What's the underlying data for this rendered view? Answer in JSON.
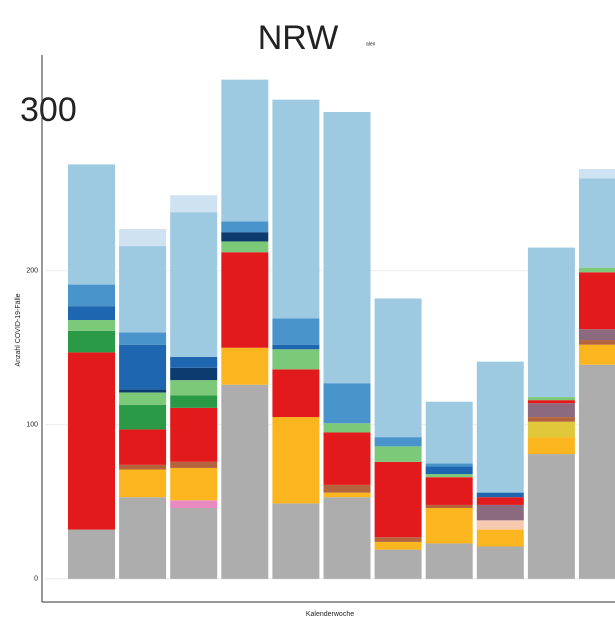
{
  "chart_data": {
    "type": "stacked_bar",
    "title": "NRW",
    "subtitle": "alen",
    "annotation": "300",
    "y_label": "Anzahl COVID-19-Fälle",
    "x_label": "Kalenderwoche",
    "categories": [
      null,
      null,
      null,
      null,
      null,
      null,
      null,
      null,
      null,
      null,
      null
    ],
    "ylim": [
      -15,
      340
    ],
    "yticks": [
      0,
      100,
      200
    ],
    "grid": true,
    "series": [
      {
        "color": "#adadad",
        "values": [
          32,
          53,
          46,
          126,
          49,
          53,
          19,
          23,
          21,
          81,
          139
        ]
      },
      {
        "color": "#e98bc0",
        "values": [
          0,
          0,
          5,
          0,
          0,
          0,
          0,
          0,
          0,
          0,
          0
        ]
      },
      {
        "color": "#fbb51f",
        "values": [
          0,
          18,
          21,
          24,
          56,
          3,
          5,
          23,
          11,
          11,
          13
        ]
      },
      {
        "color": "#f7c9b0",
        "values": [
          0,
          0,
          0,
          0,
          0,
          0,
          0,
          0,
          6,
          0,
          0
        ]
      },
      {
        "color": "#e0c83a",
        "values": [
          0,
          0,
          0,
          0,
          0,
          0,
          0,
          0,
          0,
          10,
          0
        ]
      },
      {
        "color": "#b5633d",
        "values": [
          0,
          3,
          4,
          0,
          0,
          5,
          3,
          2,
          0,
          3,
          3
        ]
      },
      {
        "color": "#8b6a80",
        "values": [
          0,
          0,
          0,
          0,
          0,
          0,
          0,
          0,
          10,
          9,
          7
        ]
      },
      {
        "color": "#e31a1c",
        "values": [
          115,
          23,
          35,
          62,
          31,
          34,
          49,
          18,
          5,
          2,
          37
        ]
      },
      {
        "color": "#2b9a47",
        "values": [
          14,
          16,
          8,
          0,
          0,
          0,
          0,
          0,
          0,
          0,
          0
        ]
      },
      {
        "color": "#7dc97a",
        "values": [
          7,
          8,
          10,
          7,
          13,
          6,
          10,
          2,
          0,
          2,
          3
        ]
      },
      {
        "color": "#0c3b70",
        "values": [
          0,
          2,
          8,
          6,
          0,
          0,
          0,
          0,
          0,
          0,
          0
        ]
      },
      {
        "color": "#1f66b0",
        "values": [
          9,
          29,
          7,
          0,
          3,
          0,
          0,
          5,
          3,
          0,
          0
        ]
      },
      {
        "color": "#4a94cc",
        "values": [
          14,
          8,
          0,
          7,
          17,
          26,
          6,
          2,
          0,
          0,
          0
        ]
      },
      {
        "color": "#9ecae1",
        "values": [
          78,
          56,
          94,
          92,
          142,
          176,
          90,
          40,
          85,
          97,
          58
        ]
      },
      {
        "color": "#cfe2f1",
        "values": [
          0,
          11,
          11,
          0,
          0,
          0,
          0,
          0,
          0,
          0,
          6
        ]
      }
    ]
  }
}
